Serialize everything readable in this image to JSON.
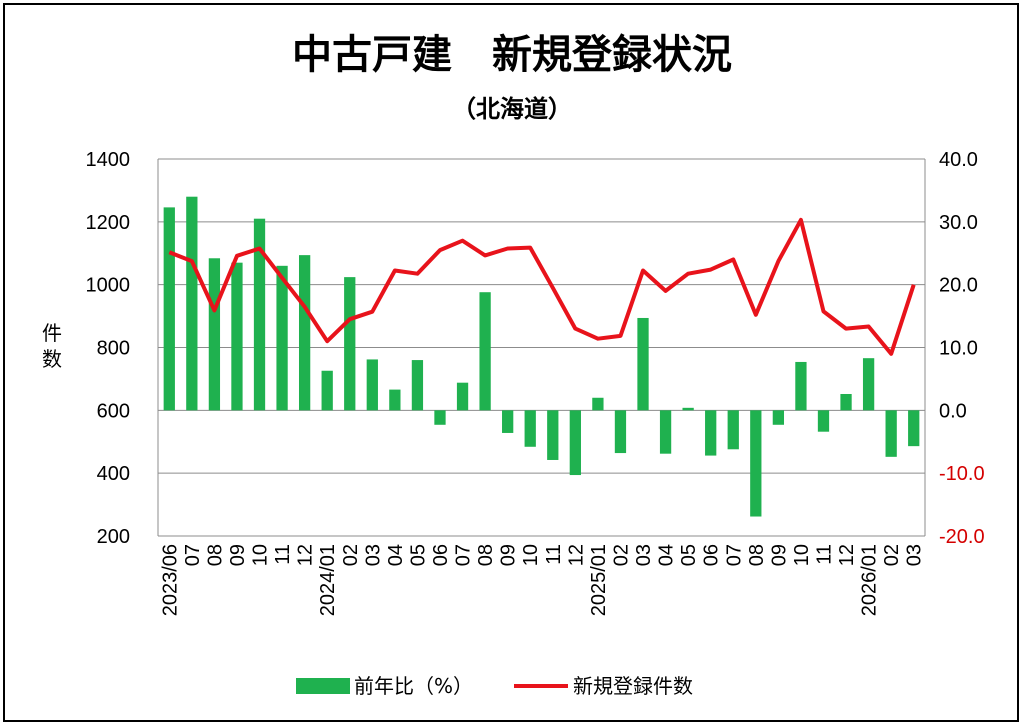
{
  "chart_data": {
    "type": "bar+line",
    "title": "中古戸建　新規登録状況",
    "subtitle": "（北海道）",
    "ylabel_left": "件数",
    "ylim_left": [
      200,
      1400
    ],
    "yticks_left": [
      "200",
      "400",
      "600",
      "800",
      "1000",
      "1200",
      "1400"
    ],
    "ylim_right": [
      -20,
      40
    ],
    "yticks_right": [
      "-20.0",
      "-10.0",
      "0.0",
      "10.0",
      "20.0",
      "30.0",
      "40.0"
    ],
    "categories": [
      "2023/06",
      "07",
      "08",
      "09",
      "10",
      "11",
      "12",
      "2024/01",
      "02",
      "03",
      "04",
      "05",
      "06",
      "07",
      "08",
      "09",
      "10",
      "11",
      "12",
      "2025/01",
      "02",
      "03",
      "04",
      "05",
      "06",
      "07",
      "08",
      "09",
      "10",
      "11",
      "12",
      "2026/01",
      "02",
      "03"
    ],
    "grid": "horizontal",
    "legend_position": "bottom",
    "series": [
      {
        "name": "前年比（%）",
        "type": "bar",
        "axis": "right",
        "color": "#1fb14f",
        "values": [
          32.3,
          34.0,
          24.2,
          23.5,
          30.5,
          23.0,
          24.7,
          6.3,
          21.2,
          8.1,
          3.3,
          8.0,
          -2.3,
          4.4,
          18.8,
          -3.6,
          -5.8,
          -7.9,
          -10.3,
          2.0,
          -6.8,
          14.7,
          -6.9,
          0.4,
          -7.2,
          -6.2,
          -16.9,
          -2.3,
          7.7,
          -3.4,
          2.6,
          8.3,
          -7.4,
          -5.7
        ]
      },
      {
        "name": "新規登録件数",
        "type": "line",
        "axis": "left",
        "color": "#e8131b",
        "values": [
          1103,
          1075,
          918,
          1092,
          1115,
          1022,
          930,
          820,
          890,
          914,
          1045,
          1035,
          1110,
          1140,
          1093,
          1115,
          1118,
          990,
          860,
          828,
          837,
          1045,
          980,
          1035,
          1048,
          1080,
          904,
          1075,
          1206,
          915,
          860,
          867,
          780,
          1000
        ]
      }
    ]
  }
}
